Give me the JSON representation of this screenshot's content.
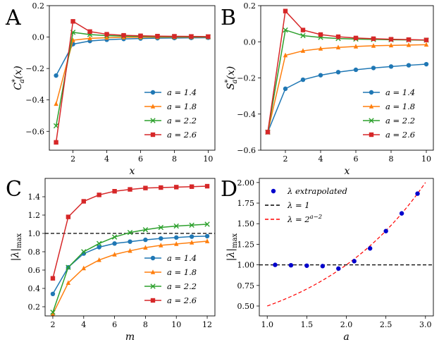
{
  "chart_data": [
    {
      "id": "A",
      "type": "line",
      "panel_letter": "A",
      "ylabel": "C_a^*(x)",
      "ylabel_parts": {
        "base": "C",
        "sup": "*",
        "sub": "a",
        "arg": "(x)"
      },
      "xlabel": "x",
      "xlim": [
        0.6,
        10.4
      ],
      "ylim": [
        -0.72,
        0.2
      ],
      "xticks": [
        2,
        4,
        6,
        8,
        10
      ],
      "yticks": [
        -0.6,
        -0.4,
        -0.2,
        0.0,
        0.2
      ],
      "ytick_labels": [
        "−0.6",
        "−0.4",
        "−0.2",
        "0.0",
        "0.2"
      ],
      "legend_loc": "lower-right",
      "x": [
        1,
        2,
        3,
        4,
        5,
        6,
        7,
        8,
        9,
        10
      ],
      "series": [
        {
          "name": "a = 1.4",
          "color": "#1f77b4",
          "marker": "circle",
          "values": [
            -0.245,
            -0.045,
            -0.025,
            -0.017,
            -0.012,
            -0.009,
            -0.007,
            -0.006,
            -0.005,
            -0.004
          ]
        },
        {
          "name": "a = 1.8",
          "color": "#ff7f0e",
          "marker": "triangle",
          "values": [
            -0.425,
            -0.02,
            -0.008,
            -0.004,
            -0.002,
            -0.001,
            0.0,
            0.0,
            0.0,
            0.0
          ]
        },
        {
          "name": "a = 2.2",
          "color": "#2ca02c",
          "marker": "x",
          "values": [
            -0.565,
            0.03,
            0.016,
            0.009,
            0.006,
            0.004,
            0.003,
            0.002,
            0.002,
            0.001
          ]
        },
        {
          "name": "a = 2.6",
          "color": "#d62728",
          "marker": "square",
          "values": [
            -0.67,
            0.1,
            0.035,
            0.018,
            0.011,
            0.008,
            0.006,
            0.005,
            0.004,
            0.003
          ]
        }
      ]
    },
    {
      "id": "B",
      "type": "line",
      "panel_letter": "B",
      "ylabel": "S_a^*(x)",
      "ylabel_parts": {
        "base": "S",
        "sup": "*",
        "sub": "a",
        "arg": "(x)"
      },
      "xlabel": "x",
      "xlim": [
        0.6,
        10.4
      ],
      "ylim": [
        -0.6,
        0.2
      ],
      "xticks": [
        2,
        4,
        6,
        8,
        10
      ],
      "yticks": [
        -0.6,
        -0.4,
        -0.2,
        0.0,
        0.2
      ],
      "ytick_labels": [
        "−0.6",
        "−0.4",
        "−0.2",
        "0.0",
        "0.2"
      ],
      "legend_loc": "lower-right",
      "x": [
        1,
        2,
        3,
        4,
        5,
        6,
        7,
        8,
        9,
        10
      ],
      "series": [
        {
          "name": "a = 1.4",
          "color": "#1f77b4",
          "marker": "circle",
          "values": [
            -0.5,
            -0.26,
            -0.21,
            -0.185,
            -0.168,
            -0.155,
            -0.145,
            -0.137,
            -0.13,
            -0.124
          ]
        },
        {
          "name": "a = 1.8",
          "color": "#ff7f0e",
          "marker": "triangle",
          "values": [
            -0.5,
            -0.075,
            -0.05,
            -0.038,
            -0.031,
            -0.026,
            -0.022,
            -0.02,
            -0.018,
            -0.016
          ]
        },
        {
          "name": "a = 2.2",
          "color": "#2ca02c",
          "marker": "x",
          "values": [
            -0.5,
            0.065,
            0.034,
            0.024,
            0.018,
            0.015,
            0.013,
            0.011,
            0.01,
            0.009
          ]
        },
        {
          "name": "a = 2.6",
          "color": "#d62728",
          "marker": "square",
          "values": [
            -0.5,
            0.17,
            0.065,
            0.04,
            0.028,
            0.021,
            0.017,
            0.014,
            0.012,
            0.01
          ]
        }
      ]
    },
    {
      "id": "C",
      "type": "line",
      "panel_letter": "C",
      "ylabel": "|λ|max",
      "ylabel_parts": {
        "main": "|λ|",
        "sub": "max"
      },
      "xlabel": "m",
      "xlim": [
        1.5,
        12.5
      ],
      "ylim": [
        0.1,
        1.6
      ],
      "xticks": [
        2,
        4,
        6,
        8,
        10,
        12
      ],
      "yticks": [
        0.2,
        0.4,
        0.6,
        0.8,
        1.0,
        1.2,
        1.4
      ],
      "ytick_labels": [
        "0.2",
        "0.4",
        "0.6",
        "0.8",
        "1.0",
        "1.2",
        "1.4"
      ],
      "hline": {
        "y": 1.0,
        "style": "dashed",
        "color": "#000000"
      },
      "legend_loc": "lower-right",
      "x": [
        2,
        3,
        4,
        5,
        6,
        7,
        8,
        9,
        10,
        11,
        12
      ],
      "series": [
        {
          "name": "a = 1.4",
          "color": "#1f77b4",
          "marker": "circle",
          "values": [
            0.34,
            0.63,
            0.78,
            0.85,
            0.89,
            0.91,
            0.93,
            0.945,
            0.955,
            0.965,
            0.97
          ]
        },
        {
          "name": "a = 1.8",
          "color": "#ff7f0e",
          "marker": "triangle",
          "values": [
            0.12,
            0.46,
            0.62,
            0.71,
            0.77,
            0.81,
            0.845,
            0.87,
            0.885,
            0.9,
            0.915
          ]
        },
        {
          "name": "a = 2.2",
          "color": "#2ca02c",
          "marker": "x",
          "values": [
            0.14,
            0.63,
            0.8,
            0.89,
            0.96,
            1.01,
            1.04,
            1.065,
            1.08,
            1.09,
            1.1
          ]
        },
        {
          "name": "a = 2.6",
          "color": "#d62728",
          "marker": "square",
          "values": [
            0.51,
            1.18,
            1.35,
            1.42,
            1.46,
            1.48,
            1.495,
            1.5,
            1.505,
            1.51,
            1.515
          ]
        }
      ]
    },
    {
      "id": "D",
      "type": "scatter",
      "panel_letter": "D",
      "ylabel": "|λ|max",
      "ylabel_parts": {
        "main": "|λ|",
        "sub": "max"
      },
      "xlabel": "a",
      "xlim": [
        0.9,
        3.1
      ],
      "ylim": [
        0.38,
        2.05
      ],
      "xticks": [
        1.0,
        1.5,
        2.0,
        2.5,
        3.0
      ],
      "xtick_labels": [
        "1.0",
        "1.5",
        "2.0",
        "2.5",
        "3.0"
      ],
      "yticks": [
        0.5,
        0.75,
        1.0,
        1.25,
        1.5,
        1.75,
        2.0
      ],
      "ytick_labels": [
        "0.50",
        "0.75",
        "1.00",
        "1.25",
        "1.50",
        "1.75",
        "2.00"
      ],
      "legend_loc": "upper-left",
      "points": {
        "name": "λ extrapolated",
        "color": "#0000cc",
        "x": [
          1.1,
          1.3,
          1.5,
          1.7,
          1.9,
          2.1,
          2.3,
          2.5,
          2.7,
          2.9
        ],
        "y": [
          1.0,
          0.995,
          0.99,
          0.985,
          0.955,
          1.045,
          1.2,
          1.41,
          1.625,
          1.865
        ]
      },
      "lines": [
        {
          "name": "λ = 1",
          "legend_main": "λ = 1",
          "color": "#000000",
          "style": "dashed",
          "kind": "hline",
          "y": 1.0
        },
        {
          "name": "λ = 2^(a−2)",
          "legend_main": "λ = 2",
          "legend_sup": "a−2",
          "color": "#ff0000",
          "style": "dashed",
          "kind": "function",
          "function": "2^(a-2)",
          "domain": [
            1.0,
            3.0
          ]
        }
      ]
    }
  ]
}
